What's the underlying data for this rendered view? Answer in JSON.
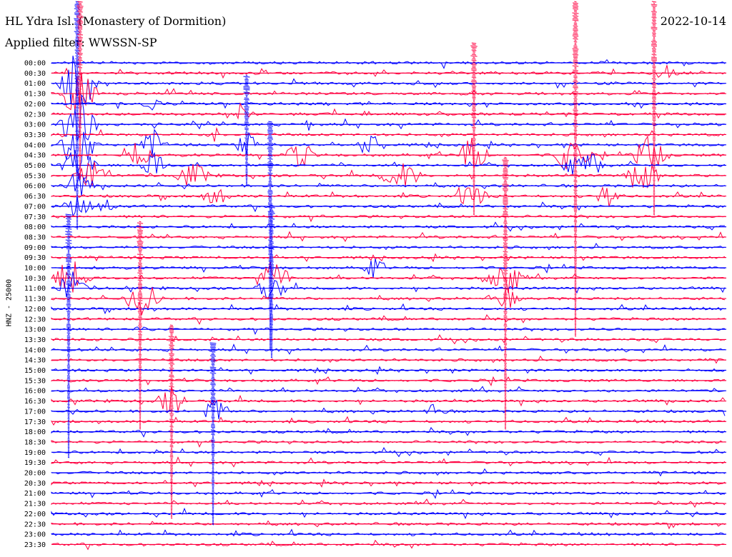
{
  "header": {
    "station": "HL Ydra Isl. (Monastery of Dormition)",
    "filter": "Applied filter: WWSSN-SP",
    "date": "2022-10-14"
  },
  "chart_data": {
    "type": "line",
    "title": "HL Ydra Isl. (Monastery of Dormition)",
    "ylabel": "HNZ - 25000",
    "row_labels": [
      "00:00",
      "00:30",
      "01:00",
      "01:30",
      "02:00",
      "02:30",
      "03:00",
      "03:30",
      "04:00",
      "04:30",
      "05:00",
      "05:30",
      "06:00",
      "06:30",
      "07:00",
      "07:30",
      "08:00",
      "08:30",
      "09:00",
      "09:30",
      "10:00",
      "10:30",
      "11:00",
      "11:30",
      "12:00",
      "12:30",
      "13:00",
      "13:30",
      "14:00",
      "14:30",
      "15:00",
      "15:30",
      "16:00",
      "16:30",
      "17:00",
      "17:30",
      "18:00",
      "18:30",
      "19:00",
      "19:30",
      "20:00",
      "20:30",
      "21:00",
      "21:30",
      "22:00",
      "22:30",
      "23:00",
      "23:30"
    ],
    "row_minutes": 30,
    "series_colors": [
      "#0000ff",
      "#ff0040"
    ],
    "grid": false,
    "legend": "none"
  }
}
